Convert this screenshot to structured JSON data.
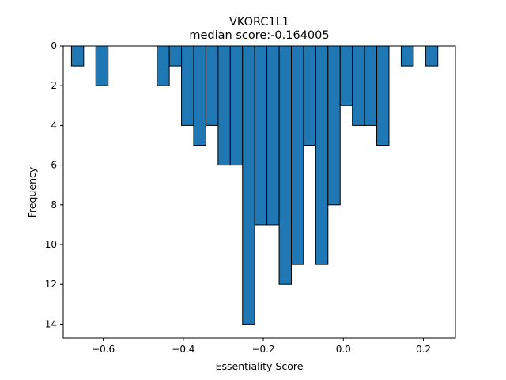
{
  "chart_data": {
    "type": "bar",
    "title": "VKORC1L1",
    "subtitle": "median score:-0.164005",
    "xlabel": "Essentiality Score",
    "ylabel": "Frequency",
    "orientation": "inverted-y histogram",
    "bar_color": "#1f77b4",
    "edge_color": "#000000",
    "bin_width": 0.0305,
    "xlim": [
      -0.7,
      0.28
    ],
    "ylim": [
      0,
      14.7
    ],
    "y_inverted": true,
    "grid": false,
    "x_ticks": [
      {
        "value": -0.6,
        "label": "−0.6"
      },
      {
        "value": -0.4,
        "label": "−0.4"
      },
      {
        "value": -0.2,
        "label": "−0.2"
      },
      {
        "value": 0.0,
        "label": "0.0"
      },
      {
        "value": 0.2,
        "label": "0.2"
      }
    ],
    "y_ticks": [
      {
        "value": 0,
        "label": "0"
      },
      {
        "value": 2,
        "label": "2"
      },
      {
        "value": 4,
        "label": "4"
      },
      {
        "value": 6,
        "label": "6"
      },
      {
        "value": 8,
        "label": "8"
      },
      {
        "value": 10,
        "label": "10"
      },
      {
        "value": 12,
        "label": "12"
      },
      {
        "value": 14,
        "label": "14"
      }
    ],
    "bins": [
      {
        "x": -0.6795,
        "count": 1
      },
      {
        "x": -0.6185,
        "count": 2
      },
      {
        "x": -0.4655,
        "count": 2
      },
      {
        "x": -0.435,
        "count": 1
      },
      {
        "x": -0.4045,
        "count": 4
      },
      {
        "x": -0.374,
        "count": 5
      },
      {
        "x": -0.3435,
        "count": 4
      },
      {
        "x": -0.313,
        "count": 6
      },
      {
        "x": -0.2825,
        "count": 6
      },
      {
        "x": -0.252,
        "count": 14
      },
      {
        "x": -0.2215,
        "count": 9
      },
      {
        "x": -0.191,
        "count": 9
      },
      {
        "x": -0.1605,
        "count": 12
      },
      {
        "x": -0.13,
        "count": 11
      },
      {
        "x": -0.0995,
        "count": 5
      },
      {
        "x": -0.069,
        "count": 11
      },
      {
        "x": -0.0385,
        "count": 8
      },
      {
        "x": -0.008,
        "count": 3
      },
      {
        "x": 0.0225,
        "count": 4
      },
      {
        "x": 0.053,
        "count": 4
      },
      {
        "x": 0.0835,
        "count": 5
      },
      {
        "x": 0.1445,
        "count": 1
      },
      {
        "x": 0.2055,
        "count": 1
      }
    ]
  }
}
